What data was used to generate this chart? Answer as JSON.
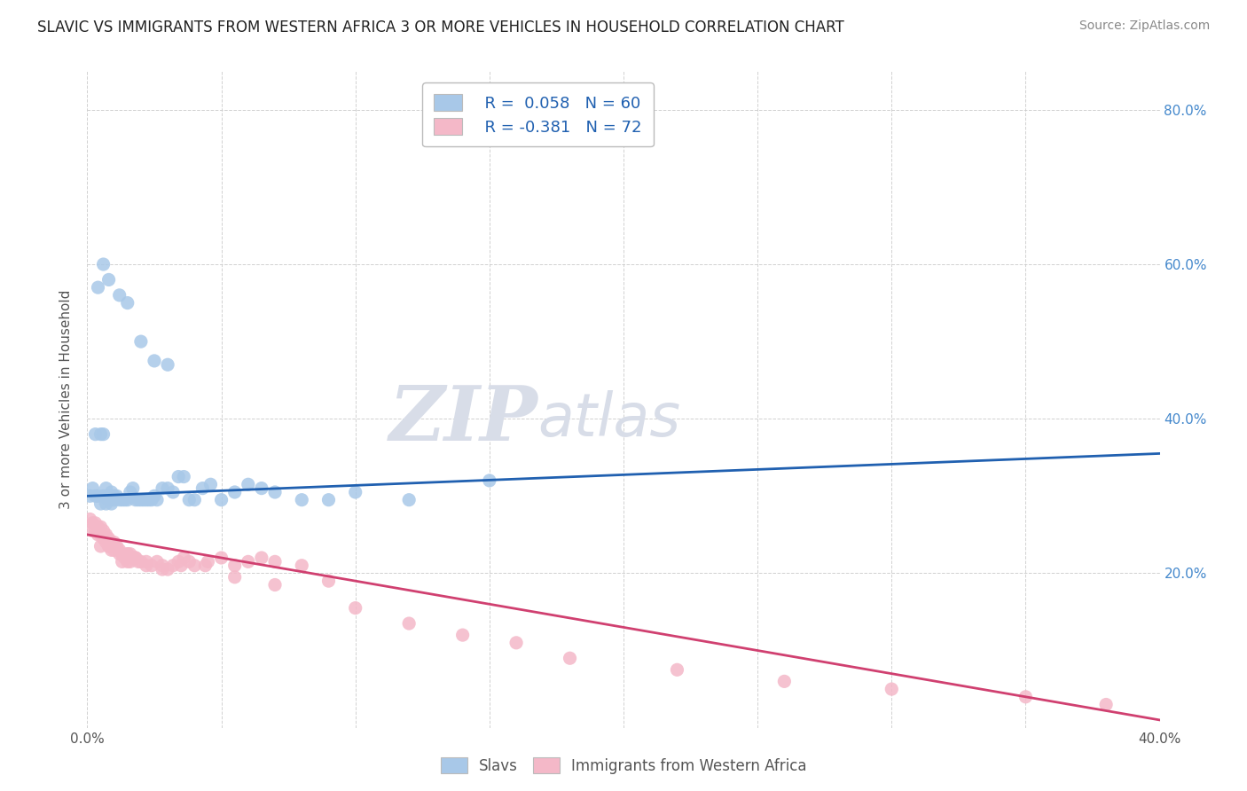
{
  "title": "SLAVIC VS IMMIGRANTS FROM WESTERN AFRICA 3 OR MORE VEHICLES IN HOUSEHOLD CORRELATION CHART",
  "source": "Source: ZipAtlas.com",
  "ylabel": "3 or more Vehicles in Household",
  "legend_blue_r": "R =  0.058",
  "legend_blue_n": "N = 60",
  "legend_pink_r": "R = -0.381",
  "legend_pink_n": "N = 72",
  "blue_color": "#a8c8e8",
  "pink_color": "#f4b8c8",
  "blue_line_color": "#2060b0",
  "pink_line_color": "#d04070",
  "legend_text_color": "#2060b0",
  "watermark_zip": "ZIP",
  "watermark_atlas": "atlas",
  "watermark_color": "#d8dde8",
  "title_fontsize": 12,
  "background_color": "#ffffff",
  "slavs_x": [
    0.001,
    0.002,
    0.003,
    0.003,
    0.004,
    0.005,
    0.005,
    0.006,
    0.006,
    0.007,
    0.007,
    0.008,
    0.008,
    0.009,
    0.009,
    0.01,
    0.01,
    0.011,
    0.012,
    0.013,
    0.014,
    0.015,
    0.016,
    0.017,
    0.018,
    0.019,
    0.02,
    0.021,
    0.022,
    0.023,
    0.024,
    0.025,
    0.026,
    0.028,
    0.03,
    0.032,
    0.034,
    0.036,
    0.038,
    0.04,
    0.043,
    0.046,
    0.05,
    0.055,
    0.06,
    0.065,
    0.07,
    0.08,
    0.09,
    0.1,
    0.12,
    0.15,
    0.004,
    0.006,
    0.008,
    0.012,
    0.015,
    0.02,
    0.025,
    0.03
  ],
  "slavs_y": [
    0.3,
    0.31,
    0.3,
    0.38,
    0.3,
    0.29,
    0.38,
    0.3,
    0.38,
    0.29,
    0.31,
    0.3,
    0.295,
    0.305,
    0.29,
    0.3,
    0.295,
    0.3,
    0.295,
    0.295,
    0.295,
    0.295,
    0.305,
    0.31,
    0.295,
    0.295,
    0.295,
    0.295,
    0.295,
    0.295,
    0.295,
    0.3,
    0.295,
    0.31,
    0.31,
    0.305,
    0.325,
    0.325,
    0.295,
    0.295,
    0.31,
    0.315,
    0.295,
    0.305,
    0.315,
    0.31,
    0.305,
    0.295,
    0.295,
    0.305,
    0.295,
    0.32,
    0.57,
    0.6,
    0.58,
    0.56,
    0.55,
    0.5,
    0.475,
    0.47
  ],
  "africa_x": [
    0.001,
    0.002,
    0.002,
    0.003,
    0.003,
    0.004,
    0.004,
    0.005,
    0.005,
    0.006,
    0.006,
    0.007,
    0.007,
    0.008,
    0.008,
    0.009,
    0.009,
    0.01,
    0.01,
    0.011,
    0.012,
    0.013,
    0.013,
    0.014,
    0.015,
    0.015,
    0.016,
    0.016,
    0.017,
    0.018,
    0.019,
    0.02,
    0.022,
    0.024,
    0.026,
    0.028,
    0.03,
    0.032,
    0.034,
    0.036,
    0.038,
    0.04,
    0.045,
    0.05,
    0.055,
    0.06,
    0.065,
    0.07,
    0.08,
    0.09,
    0.1,
    0.12,
    0.14,
    0.16,
    0.18,
    0.22,
    0.26,
    0.3,
    0.35,
    0.38,
    0.005,
    0.008,
    0.01,
    0.012,
    0.015,
    0.018,
    0.022,
    0.028,
    0.035,
    0.044,
    0.055,
    0.07
  ],
  "africa_y": [
    0.27,
    0.265,
    0.255,
    0.265,
    0.255,
    0.26,
    0.25,
    0.26,
    0.25,
    0.255,
    0.245,
    0.25,
    0.24,
    0.245,
    0.235,
    0.24,
    0.23,
    0.24,
    0.23,
    0.235,
    0.225,
    0.225,
    0.215,
    0.22,
    0.215,
    0.225,
    0.215,
    0.225,
    0.22,
    0.22,
    0.215,
    0.215,
    0.21,
    0.21,
    0.215,
    0.205,
    0.205,
    0.21,
    0.215,
    0.22,
    0.215,
    0.21,
    0.215,
    0.22,
    0.21,
    0.215,
    0.22,
    0.215,
    0.21,
    0.19,
    0.155,
    0.135,
    0.12,
    0.11,
    0.09,
    0.075,
    0.06,
    0.05,
    0.04,
    0.03,
    0.235,
    0.235,
    0.235,
    0.23,
    0.225,
    0.22,
    0.215,
    0.21,
    0.21,
    0.21,
    0.195,
    0.185
  ],
  "xlim": [
    0.0,
    0.4
  ],
  "ylim": [
    0.0,
    0.85
  ],
  "right_yticks": [
    0.2,
    0.4,
    0.6,
    0.8
  ],
  "right_ytick_labels": [
    "20.0%",
    "40.0%",
    "60.0%",
    "80.0%"
  ],
  "xticks": [
    0.0,
    0.05,
    0.1,
    0.15,
    0.2,
    0.25,
    0.3,
    0.35,
    0.4
  ],
  "xtick_labels": [
    "0.0%",
    "",
    "",
    "",
    "",
    "",
    "",
    "",
    "40.0%"
  ]
}
